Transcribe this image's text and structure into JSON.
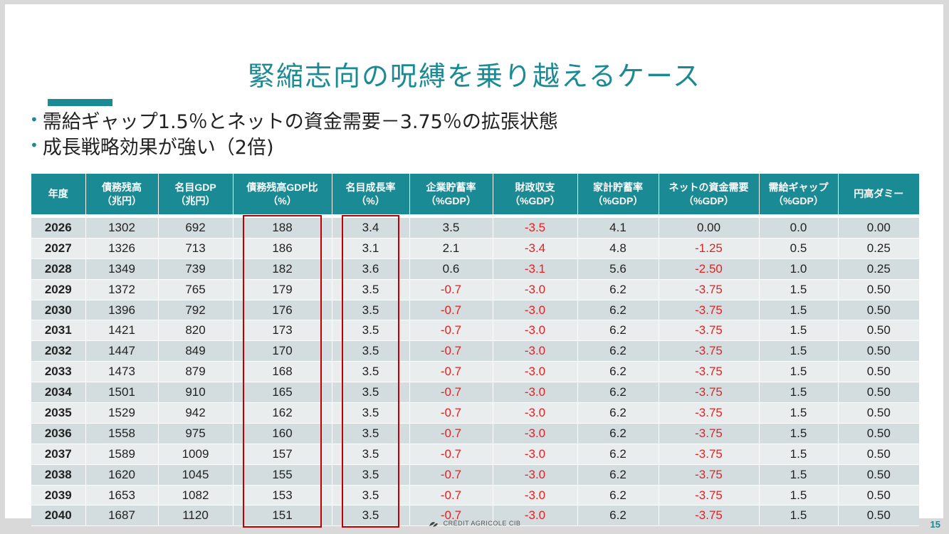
{
  "slide": {
    "title": "緊縮志向の呪縛を乗り越えるケース",
    "bullets": [
      "需給ギャップ1.5％とネットの資金需要－3.75％の拡張状態",
      "成長戦略効果が強い（2倍)"
    ],
    "footer_logo": "CRÉDIT AGRICOLE CIB",
    "page_number": "15"
  },
  "table": {
    "headers": [
      {
        "line1": "年度",
        "line2": ""
      },
      {
        "line1": "債務残高",
        "line2": "（兆円）"
      },
      {
        "line1": "名目GDP",
        "line2": "（兆円）"
      },
      {
        "line1": "債務残高GDP比",
        "line2": "（%）"
      },
      {
        "line1": "名目成長率",
        "line2": "（%）"
      },
      {
        "line1": "企業貯蓄率",
        "line2": "（%GDP）"
      },
      {
        "line1": "財政収支",
        "line2": "（%GDP）"
      },
      {
        "line1": "家計貯蓄率",
        "line2": "（%GDP）"
      },
      {
        "line1": "ネットの資金需要",
        "line2": "（%GDP）"
      },
      {
        "line1": "需給ギャップ",
        "line2": "（%GDP）"
      },
      {
        "line1": "円高ダミー",
        "line2": ""
      }
    ],
    "rows": [
      [
        "2026",
        "1302",
        "692",
        "188",
        "3.4",
        "3.5",
        "-3.5",
        "4.1",
        "0.00",
        "0.0",
        "0.00"
      ],
      [
        "2027",
        "1326",
        "713",
        "186",
        "3.1",
        "2.1",
        "-3.4",
        "4.8",
        "-1.25",
        "0.5",
        "0.25"
      ],
      [
        "2028",
        "1349",
        "739",
        "182",
        "3.6",
        "0.6",
        "-3.1",
        "5.6",
        "-2.50",
        "1.0",
        "0.25"
      ],
      [
        "2029",
        "1372",
        "765",
        "179",
        "3.5",
        "-0.7",
        "-3.0",
        "6.2",
        "-3.75",
        "1.5",
        "0.50"
      ],
      [
        "2030",
        "1396",
        "792",
        "176",
        "3.5",
        "-0.7",
        "-3.0",
        "6.2",
        "-3.75",
        "1.5",
        "0.50"
      ],
      [
        "2031",
        "1421",
        "820",
        "173",
        "3.5",
        "-0.7",
        "-3.0",
        "6.2",
        "-3.75",
        "1.5",
        "0.50"
      ],
      [
        "2032",
        "1447",
        "849",
        "170",
        "3.5",
        "-0.7",
        "-3.0",
        "6.2",
        "-3.75",
        "1.5",
        "0.50"
      ],
      [
        "2033",
        "1473",
        "879",
        "168",
        "3.5",
        "-0.7",
        "-3.0",
        "6.2",
        "-3.75",
        "1.5",
        "0.50"
      ],
      [
        "2034",
        "1501",
        "910",
        "165",
        "3.5",
        "-0.7",
        "-3.0",
        "6.2",
        "-3.75",
        "1.5",
        "0.50"
      ],
      [
        "2035",
        "1529",
        "942",
        "162",
        "3.5",
        "-0.7",
        "-3.0",
        "6.2",
        "-3.75",
        "1.5",
        "0.50"
      ],
      [
        "2036",
        "1558",
        "975",
        "160",
        "3.5",
        "-0.7",
        "-3.0",
        "6.2",
        "-3.75",
        "1.5",
        "0.50"
      ],
      [
        "2037",
        "1589",
        "1009",
        "157",
        "3.5",
        "-0.7",
        "-3.0",
        "6.2",
        "-3.75",
        "1.5",
        "0.50"
      ],
      [
        "2038",
        "1620",
        "1045",
        "155",
        "3.5",
        "-0.7",
        "-3.0",
        "6.2",
        "-3.75",
        "1.5",
        "0.50"
      ],
      [
        "2039",
        "1653",
        "1082",
        "153",
        "3.5",
        "-0.7",
        "-3.0",
        "6.2",
        "-3.75",
        "1.5",
        "0.50"
      ],
      [
        "2040",
        "1687",
        "1120",
        "151",
        "3.5",
        "-0.7",
        "-3.0",
        "6.2",
        "-3.75",
        "1.5",
        "0.50"
      ]
    ],
    "highlighted_columns": [
      3,
      4
    ]
  },
  "colors": {
    "accent": "#1a8a94",
    "negative": "#e32222",
    "highlight_box": "#c00000",
    "row_odd": "#d3dcdf",
    "row_even": "#e9edee"
  }
}
